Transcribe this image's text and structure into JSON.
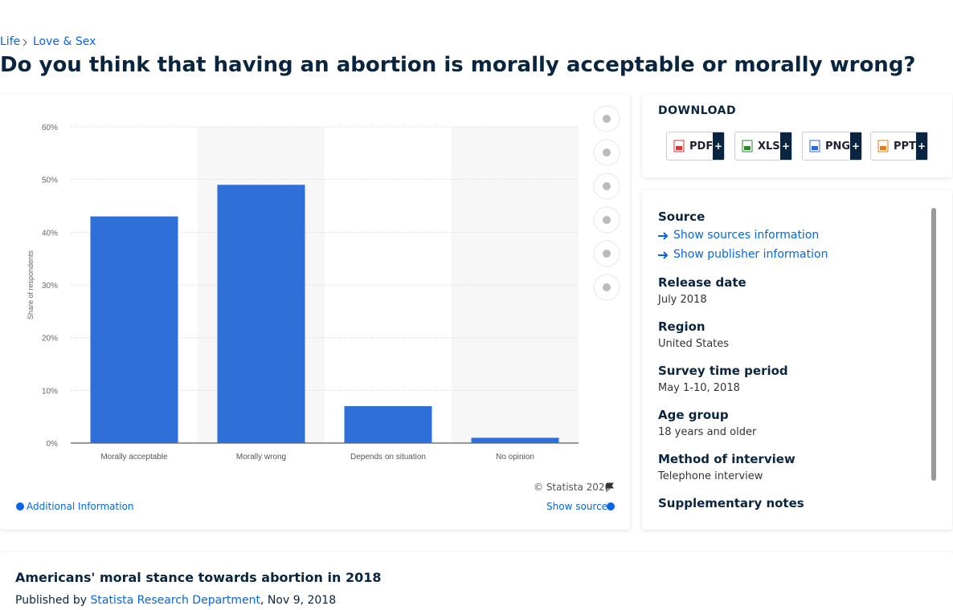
{
  "breadcrumb": [
    "Life",
    "Love & Sex"
  ],
  "page_title": "Do you think that having an abortion is morally acceptable or morally wrong?",
  "chart_data": {
    "type": "bar",
    "y_label": "Share of respondents",
    "categories": [
      "Morally acceptable",
      "Morally wrong",
      "Depends on situation",
      "No opinion"
    ],
    "values": [
      43,
      49,
      7,
      1
    ],
    "color": "#2f6fd8",
    "ylim": [
      0,
      60
    ],
    "yticks": [
      {
        "value": 0,
        "label": "0%"
      },
      {
        "value": 10,
        "label": "10%"
      },
      {
        "value": 20,
        "label": "20%"
      },
      {
        "value": 30,
        "label": "30%"
      },
      {
        "value": 40,
        "label": "40%"
      },
      {
        "value": 50,
        "label": "50%"
      },
      {
        "value": 60,
        "label": "60%"
      }
    ],
    "grid": true
  },
  "chart_footer": {
    "copyright": "© Statista 2020",
    "additional": "Additional Information",
    "show_source": "Show source"
  },
  "download": {
    "title": "DOWNLOAD",
    "formats": [
      "PDF",
      "XLS",
      "PNG",
      "PPT"
    ],
    "plus": "+"
  },
  "details": {
    "source_title": "Source",
    "links": [
      "Show sources information",
      "Show publisher information"
    ],
    "items": [
      {
        "label": "Release date",
        "value": "July 2018"
      },
      {
        "label": "Region",
        "value": "United States"
      },
      {
        "label": "Survey time period",
        "value": "May 1-10, 2018"
      },
      {
        "label": "Age group",
        "value": "18 years and older"
      },
      {
        "label": "Method of interview",
        "value": "Telephone interview"
      },
      {
        "label": "Supplementary notes",
        "value": null
      }
    ]
  },
  "footer": {
    "title": "Americans' moral stance towards abortion in 2018",
    "published_by": "Published by",
    "publisher": "Statista Research Department",
    "date": ", Nov 9, 2018"
  }
}
